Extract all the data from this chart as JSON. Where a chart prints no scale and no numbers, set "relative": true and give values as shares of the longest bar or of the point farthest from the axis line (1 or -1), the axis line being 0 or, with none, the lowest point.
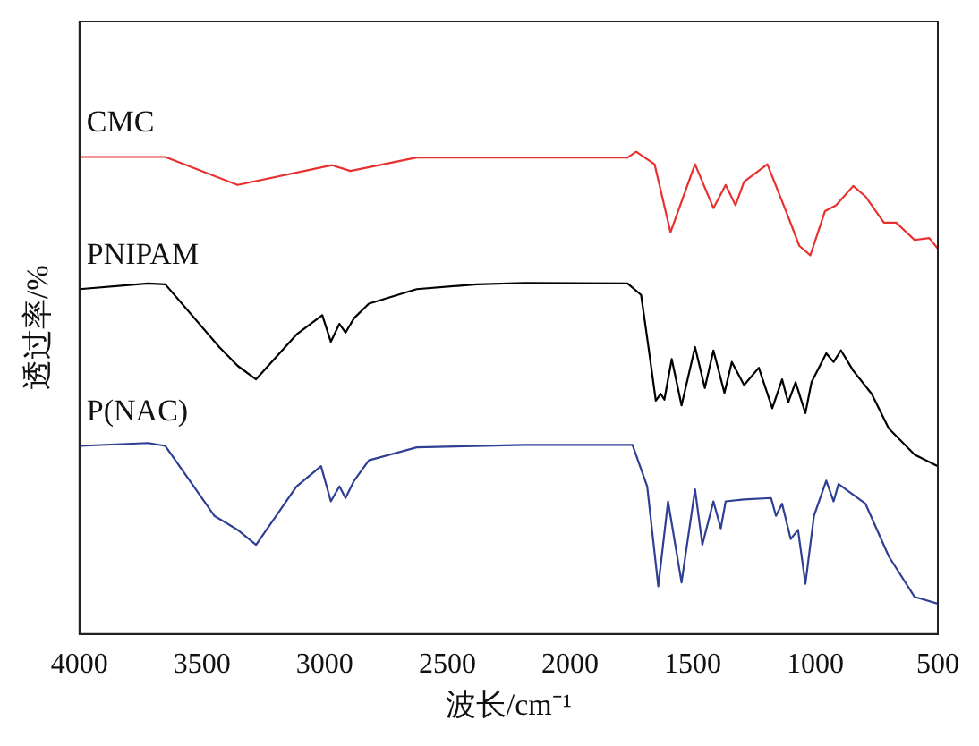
{
  "chart_data": {
    "type": "line",
    "relative": true,
    "xlabel": "波长/cm⁻¹",
    "ylabel": "透过率/%",
    "xlim": [
      4000,
      500
    ],
    "xticks": [
      4000,
      3500,
      3000,
      2500,
      2000,
      1500,
      1000,
      500
    ],
    "grid": false,
    "legend": false,
    "marker": "none",
    "line_style": "solid",
    "series": [
      {
        "name": "CMC",
        "color": "#e8312f",
        "x": [
          4000,
          3650,
          3355,
          2970,
          2895,
          2625,
          1765,
          1730,
          1655,
          1590,
          1490,
          1415,
          1365,
          1325,
          1290,
          1195,
          1110,
          1065,
          1020,
          960,
          915,
          845,
          795,
          720,
          670,
          595,
          535,
          500
        ],
        "values": [
          0.989,
          0.989,
          0.931,
          0.972,
          0.96,
          0.988,
          0.988,
          1.0,
          0.974,
          0.833,
          0.974,
          0.883,
          0.931,
          0.889,
          0.938,
          0.974,
          0.865,
          0.805,
          0.785,
          0.877,
          0.889,
          0.929,
          0.907,
          0.853,
          0.853,
          0.817,
          0.821,
          0.799
        ]
      },
      {
        "name": "PNIPAM",
        "color": "#000000",
        "x": [
          4000,
          3720,
          3650,
          3430,
          3355,
          3280,
          3115,
          3010,
          2975,
          2940,
          2915,
          2880,
          2820,
          2625,
          2380,
          2185,
          1765,
          1710,
          1680,
          1650,
          1630,
          1615,
          1585,
          1545,
          1490,
          1450,
          1415,
          1370,
          1340,
          1290,
          1230,
          1175,
          1135,
          1110,
          1080,
          1040,
          1015,
          955,
          925,
          895,
          845,
          770,
          700,
          595,
          500
        ],
        "values": [
          0.715,
          0.727,
          0.725,
          0.595,
          0.556,
          0.528,
          0.621,
          0.661,
          0.606,
          0.643,
          0.625,
          0.655,
          0.685,
          0.715,
          0.725,
          0.728,
          0.727,
          0.703,
          0.595,
          0.484,
          0.498,
          0.486,
          0.57,
          0.474,
          0.595,
          0.51,
          0.588,
          0.5,
          0.564,
          0.516,
          0.552,
          0.468,
          0.528,
          0.48,
          0.522,
          0.458,
          0.522,
          0.582,
          0.564,
          0.588,
          0.546,
          0.498,
          0.426,
          0.372,
          0.348
        ]
      },
      {
        "name": "P(NAC)",
        "color": "#2e3f94",
        "x": [
          4000,
          3720,
          3650,
          3450,
          3355,
          3280,
          3115,
          3015,
          2975,
          2940,
          2915,
          2880,
          2820,
          2625,
          2185,
          1745,
          1685,
          1640,
          1600,
          1545,
          1490,
          1460,
          1415,
          1385,
          1365,
          1290,
          1180,
          1160,
          1135,
          1100,
          1070,
          1040,
          1005,
          955,
          925,
          905,
          795,
          700,
          595,
          500
        ],
        "values": [
          0.39,
          0.396,
          0.39,
          0.245,
          0.216,
          0.185,
          0.306,
          0.348,
          0.275,
          0.306,
          0.282,
          0.318,
          0.36,
          0.387,
          0.392,
          0.392,
          0.306,
          0.099,
          0.275,
          0.107,
          0.3,
          0.185,
          0.275,
          0.219,
          0.275,
          0.279,
          0.282,
          0.245,
          0.27,
          0.197,
          0.216,
          0.104,
          0.245,
          0.318,
          0.275,
          0.311,
          0.27,
          0.161,
          0.077,
          0.063
        ]
      }
    ]
  }
}
